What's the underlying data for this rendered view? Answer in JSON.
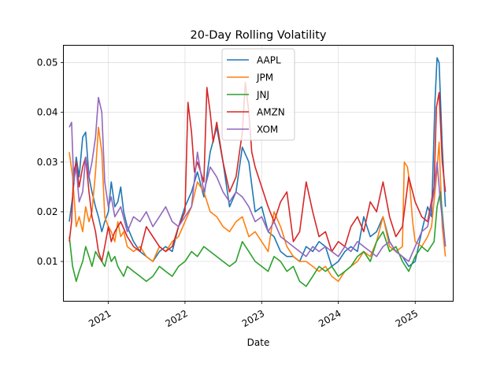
{
  "chart_data": {
    "type": "line",
    "title": "20-Day Rolling Volatility",
    "xlabel": "Date",
    "ylabel": "",
    "xlim": [
      "2020-06-01",
      "2025-07-01"
    ],
    "ylim": [
      0.002,
      0.0535
    ],
    "yticks": [
      0.01,
      0.02,
      0.03,
      0.04,
      0.05
    ],
    "ytick_labels": [
      "0.01",
      "0.02",
      "0.03",
      "0.04",
      "0.05"
    ],
    "xticks": [
      "2021-01-01",
      "2022-01-01",
      "2023-01-01",
      "2024-01-01",
      "2025-01-01"
    ],
    "xtick_labels": [
      "2021",
      "2022",
      "2023",
      "2024",
      "2025"
    ],
    "grid": true,
    "legend_position": "top-center",
    "series": [
      {
        "name": "AAPL",
        "color": "#1f77b4",
        "x": [
          "2020-06-29",
          "2020-07-15",
          "2020-08-01",
          "2020-08-15",
          "2020-09-01",
          "2020-09-15",
          "2020-10-01",
          "2020-10-15",
          "2020-11-01",
          "2020-11-15",
          "2020-12-01",
          "2020-12-15",
          "2021-01-01",
          "2021-01-15",
          "2021-02-01",
          "2021-02-15",
          "2021-03-01",
          "2021-03-15",
          "2021-04-01",
          "2021-05-01",
          "2021-06-01",
          "2021-07-01",
          "2021-08-01",
          "2021-09-01",
          "2021-10-01",
          "2021-11-01",
          "2021-12-01",
          "2022-01-01",
          "2022-02-01",
          "2022-03-01",
          "2022-04-01",
          "2022-05-01",
          "2022-06-01",
          "2022-07-01",
          "2022-08-01",
          "2022-09-01",
          "2022-10-01",
          "2022-11-01",
          "2022-12-01",
          "2023-01-01",
          "2023-02-01",
          "2023-03-01",
          "2023-04-01",
          "2023-05-01",
          "2023-06-01",
          "2023-07-01",
          "2023-08-01",
          "2023-09-01",
          "2023-10-01",
          "2023-11-01",
          "2023-12-01",
          "2024-01-01",
          "2024-02-01",
          "2024-03-01",
          "2024-04-01",
          "2024-05-01",
          "2024-06-01",
          "2024-07-01",
          "2024-08-01",
          "2024-09-01",
          "2024-10-01",
          "2024-11-01",
          "2024-12-01",
          "2025-01-01",
          "2025-02-01",
          "2025-03-01",
          "2025-03-20",
          "2025-04-05",
          "2025-04-15",
          "2025-04-25",
          "2025-05-10",
          "2025-05-25"
        ],
        "values": [
          0.018,
          0.023,
          0.031,
          0.027,
          0.035,
          0.036,
          0.027,
          0.024,
          0.021,
          0.019,
          0.016,
          0.018,
          0.02,
          0.026,
          0.021,
          0.022,
          0.025,
          0.02,
          0.017,
          0.014,
          0.012,
          0.011,
          0.01,
          0.012,
          0.013,
          0.012,
          0.017,
          0.021,
          0.024,
          0.028,
          0.023,
          0.032,
          0.037,
          0.03,
          0.021,
          0.024,
          0.033,
          0.03,
          0.02,
          0.021,
          0.016,
          0.015,
          0.012,
          0.011,
          0.011,
          0.01,
          0.013,
          0.012,
          0.014,
          0.013,
          0.009,
          0.01,
          0.012,
          0.013,
          0.012,
          0.019,
          0.015,
          0.016,
          0.019,
          0.014,
          0.012,
          0.011,
          0.009,
          0.01,
          0.016,
          0.021,
          0.019,
          0.042,
          0.051,
          0.05,
          0.033,
          0.021
        ]
      },
      {
        "name": "JPM",
        "color": "#ff7f0e",
        "x": [
          "2020-06-29",
          "2020-07-15",
          "2020-08-01",
          "2020-08-15",
          "2020-09-01",
          "2020-09-15",
          "2020-10-01",
          "2020-10-15",
          "2020-11-01",
          "2020-11-15",
          "2020-12-01",
          "2020-12-15",
          "2021-01-01",
          "2021-01-15",
          "2021-02-01",
          "2021-02-15",
          "2021-03-01",
          "2021-03-15",
          "2021-04-01",
          "2021-05-01",
          "2021-06-01",
          "2021-07-01",
          "2021-08-01",
          "2021-09-01",
          "2021-10-01",
          "2021-11-01",
          "2021-12-01",
          "2022-01-01",
          "2022-02-01",
          "2022-03-01",
          "2022-04-01",
          "2022-05-01",
          "2022-06-01",
          "2022-07-01",
          "2022-08-01",
          "2022-09-01",
          "2022-10-01",
          "2022-11-01",
          "2022-12-01",
          "2023-01-01",
          "2023-02-01",
          "2023-03-01",
          "2023-04-01",
          "2023-05-01",
          "2023-06-01",
          "2023-07-01",
          "2023-08-01",
          "2023-09-01",
          "2023-10-01",
          "2023-11-01",
          "2023-12-01",
          "2024-01-01",
          "2024-02-01",
          "2024-03-01",
          "2024-04-01",
          "2024-05-01",
          "2024-06-01",
          "2024-07-01",
          "2024-08-01",
          "2024-09-01",
          "2024-10-01",
          "2024-11-01",
          "2024-11-10",
          "2024-11-25",
          "2024-12-05",
          "2024-12-20",
          "2025-01-01",
          "2025-02-01",
          "2025-03-01",
          "2025-03-20",
          "2025-04-10",
          "2025-04-25",
          "2025-05-10",
          "2025-05-25"
        ],
        "values": [
          0.032,
          0.027,
          0.017,
          0.019,
          0.016,
          0.021,
          0.018,
          0.02,
          0.028,
          0.037,
          0.032,
          0.019,
          0.017,
          0.016,
          0.014,
          0.018,
          0.015,
          0.016,
          0.013,
          0.012,
          0.013,
          0.011,
          0.01,
          0.013,
          0.012,
          0.014,
          0.015,
          0.018,
          0.021,
          0.026,
          0.024,
          0.02,
          0.019,
          0.017,
          0.016,
          0.018,
          0.019,
          0.015,
          0.016,
          0.014,
          0.012,
          0.02,
          0.017,
          0.013,
          0.011,
          0.01,
          0.01,
          0.009,
          0.008,
          0.009,
          0.007,
          0.006,
          0.008,
          0.009,
          0.01,
          0.012,
          0.011,
          0.014,
          0.019,
          0.013,
          0.012,
          0.013,
          0.03,
          0.029,
          0.026,
          0.018,
          0.014,
          0.013,
          0.015,
          0.017,
          0.026,
          0.034,
          0.017,
          0.011
        ]
      },
      {
        "name": "JNJ",
        "color": "#2ca02c",
        "x": [
          "2020-06-29",
          "2020-07-15",
          "2020-08-01",
          "2020-08-15",
          "2020-09-01",
          "2020-09-15",
          "2020-10-01",
          "2020-10-15",
          "2020-11-01",
          "2020-11-15",
          "2020-12-01",
          "2020-12-15",
          "2021-01-01",
          "2021-01-15",
          "2021-02-01",
          "2021-02-15",
          "2021-03-01",
          "2021-03-15",
          "2021-04-01",
          "2021-05-01",
          "2021-06-01",
          "2021-07-01",
          "2021-08-01",
          "2021-09-01",
          "2021-10-01",
          "2021-11-01",
          "2021-12-01",
          "2022-01-01",
          "2022-02-01",
          "2022-03-01",
          "2022-04-01",
          "2022-05-01",
          "2022-06-01",
          "2022-07-01",
          "2022-08-01",
          "2022-09-01",
          "2022-10-01",
          "2022-11-01",
          "2022-12-01",
          "2023-01-01",
          "2023-02-01",
          "2023-03-01",
          "2023-04-01",
          "2023-05-01",
          "2023-06-01",
          "2023-07-01",
          "2023-08-01",
          "2023-09-01",
          "2023-10-01",
          "2023-11-01",
          "2023-12-01",
          "2024-01-01",
          "2024-02-01",
          "2024-03-01",
          "2024-04-01",
          "2024-05-01",
          "2024-06-01",
          "2024-07-01",
          "2024-08-01",
          "2024-09-01",
          "2024-10-01",
          "2024-11-01",
          "2024-12-01",
          "2025-01-01",
          "2025-02-01",
          "2025-03-01",
          "2025-04-01",
          "2025-04-15",
          "2025-05-01",
          "2025-05-25"
        ],
        "values": [
          0.015,
          0.009,
          0.006,
          0.008,
          0.01,
          0.013,
          0.011,
          0.009,
          0.012,
          0.011,
          0.01,
          0.009,
          0.012,
          0.01,
          0.011,
          0.009,
          0.008,
          0.007,
          0.009,
          0.008,
          0.007,
          0.006,
          0.007,
          0.009,
          0.008,
          0.007,
          0.009,
          0.01,
          0.012,
          0.011,
          0.013,
          0.012,
          0.011,
          0.01,
          0.009,
          0.01,
          0.014,
          0.012,
          0.01,
          0.009,
          0.008,
          0.011,
          0.01,
          0.008,
          0.009,
          0.006,
          0.005,
          0.007,
          0.009,
          0.008,
          0.009,
          0.007,
          0.008,
          0.009,
          0.011,
          0.012,
          0.01,
          0.014,
          0.016,
          0.012,
          0.013,
          0.01,
          0.008,
          0.011,
          0.013,
          0.012,
          0.014,
          0.021,
          0.024,
          0.013
        ]
      },
      {
        "name": "AMZN",
        "color": "#d62728",
        "x": [
          "2020-06-29",
          "2020-07-10",
          "2020-07-20",
          "2020-08-01",
          "2020-08-15",
          "2020-09-01",
          "2020-09-15",
          "2020-10-01",
          "2020-10-15",
          "2020-11-01",
          "2020-11-15",
          "2020-12-01",
          "2020-12-15",
          "2021-01-01",
          "2021-01-15",
          "2021-02-01",
          "2021-03-01",
          "2021-04-01",
          "2021-05-01",
          "2021-06-01",
          "2021-07-01",
          "2021-08-01",
          "2021-09-01",
          "2021-10-01",
          "2021-11-01",
          "2021-12-01",
          "2022-01-01",
          "2022-01-15",
          "2022-02-01",
          "2022-02-15",
          "2022-03-01",
          "2022-04-01",
          "2022-04-15",
          "2022-05-01",
          "2022-05-15",
          "2022-06-01",
          "2022-07-01",
          "2022-08-01",
          "2022-09-01",
          "2022-10-01",
          "2022-10-15",
          "2022-11-01",
          "2022-11-15",
          "2022-12-01",
          "2023-01-01",
          "2023-02-01",
          "2023-03-01",
          "2023-04-01",
          "2023-05-01",
          "2023-06-01",
          "2023-07-01",
          "2023-08-01",
          "2023-09-01",
          "2023-10-01",
          "2023-11-01",
          "2023-12-01",
          "2024-01-01",
          "2024-02-01",
          "2024-03-01",
          "2024-04-01",
          "2024-05-01",
          "2024-06-01",
          "2024-07-01",
          "2024-08-01",
          "2024-09-01",
          "2024-10-01",
          "2024-11-01",
          "2024-12-01",
          "2025-01-01",
          "2025-02-01",
          "2025-03-01",
          "2025-04-01",
          "2025-04-12",
          "2025-04-25",
          "2025-05-10",
          "2025-05-25"
        ],
        "values": [
          0.014,
          0.018,
          0.028,
          0.03,
          0.025,
          0.029,
          0.031,
          0.024,
          0.019,
          0.016,
          0.012,
          0.01,
          0.013,
          0.017,
          0.014,
          0.016,
          0.018,
          0.015,
          0.013,
          0.012,
          0.017,
          0.015,
          0.013,
          0.012,
          0.013,
          0.017,
          0.02,
          0.042,
          0.036,
          0.028,
          0.03,
          0.026,
          0.045,
          0.04,
          0.034,
          0.038,
          0.03,
          0.024,
          0.027,
          0.036,
          0.046,
          0.04,
          0.032,
          0.029,
          0.025,
          0.021,
          0.018,
          0.022,
          0.024,
          0.014,
          0.016,
          0.026,
          0.02,
          0.015,
          0.016,
          0.012,
          0.014,
          0.013,
          0.017,
          0.019,
          0.016,
          0.022,
          0.02,
          0.026,
          0.019,
          0.015,
          0.017,
          0.027,
          0.022,
          0.019,
          0.018,
          0.025,
          0.041,
          0.044,
          0.03,
          0.024
        ]
      },
      {
        "name": "XOM",
        "color": "#9467bd",
        "x": [
          "2020-06-29",
          "2020-07-10",
          "2020-07-20",
          "2020-08-01",
          "2020-08-15",
          "2020-09-01",
          "2020-09-15",
          "2020-10-01",
          "2020-10-15",
          "2020-11-01",
          "2020-11-15",
          "2020-12-01",
          "2020-12-15",
          "2021-01-01",
          "2021-01-15",
          "2021-02-01",
          "2021-03-01",
          "2021-04-01",
          "2021-05-01",
          "2021-06-01",
          "2021-07-01",
          "2021-08-01",
          "2021-09-01",
          "2021-10-01",
          "2021-11-01",
          "2021-12-01",
          "2022-01-01",
          "2022-02-01",
          "2022-03-01",
          "2022-04-01",
          "2022-05-01",
          "2022-06-01",
          "2022-07-01",
          "2022-08-01",
          "2022-09-01",
          "2022-10-01",
          "2022-11-01",
          "2022-12-01",
          "2023-01-01",
          "2023-02-01",
          "2023-03-01",
          "2023-04-01",
          "2023-05-01",
          "2023-06-01",
          "2023-07-01",
          "2023-08-01",
          "2023-09-01",
          "2023-10-01",
          "2023-11-01",
          "2023-12-01",
          "2024-01-01",
          "2024-02-01",
          "2024-03-01",
          "2024-04-01",
          "2024-05-01",
          "2024-06-01",
          "2024-07-01",
          "2024-08-01",
          "2024-09-01",
          "2024-10-01",
          "2024-11-01",
          "2024-12-01",
          "2025-01-01",
          "2025-02-01",
          "2025-03-01",
          "2025-04-01",
          "2025-04-15",
          "2025-05-01",
          "2025-05-25"
        ],
        "values": [
          0.037,
          0.038,
          0.026,
          0.029,
          0.022,
          0.024,
          0.031,
          0.027,
          0.03,
          0.035,
          0.043,
          0.04,
          0.026,
          0.021,
          0.023,
          0.019,
          0.021,
          0.016,
          0.019,
          0.018,
          0.02,
          0.017,
          0.019,
          0.021,
          0.018,
          0.017,
          0.019,
          0.021,
          0.032,
          0.024,
          0.029,
          0.027,
          0.024,
          0.022,
          0.024,
          0.023,
          0.021,
          0.018,
          0.019,
          0.016,
          0.018,
          0.015,
          0.014,
          0.013,
          0.012,
          0.011,
          0.013,
          0.012,
          0.013,
          0.012,
          0.011,
          0.013,
          0.012,
          0.014,
          0.013,
          0.012,
          0.011,
          0.013,
          0.014,
          0.012,
          0.011,
          0.01,
          0.013,
          0.016,
          0.017,
          0.024,
          0.03,
          0.022,
          0.013
        ]
      }
    ]
  }
}
